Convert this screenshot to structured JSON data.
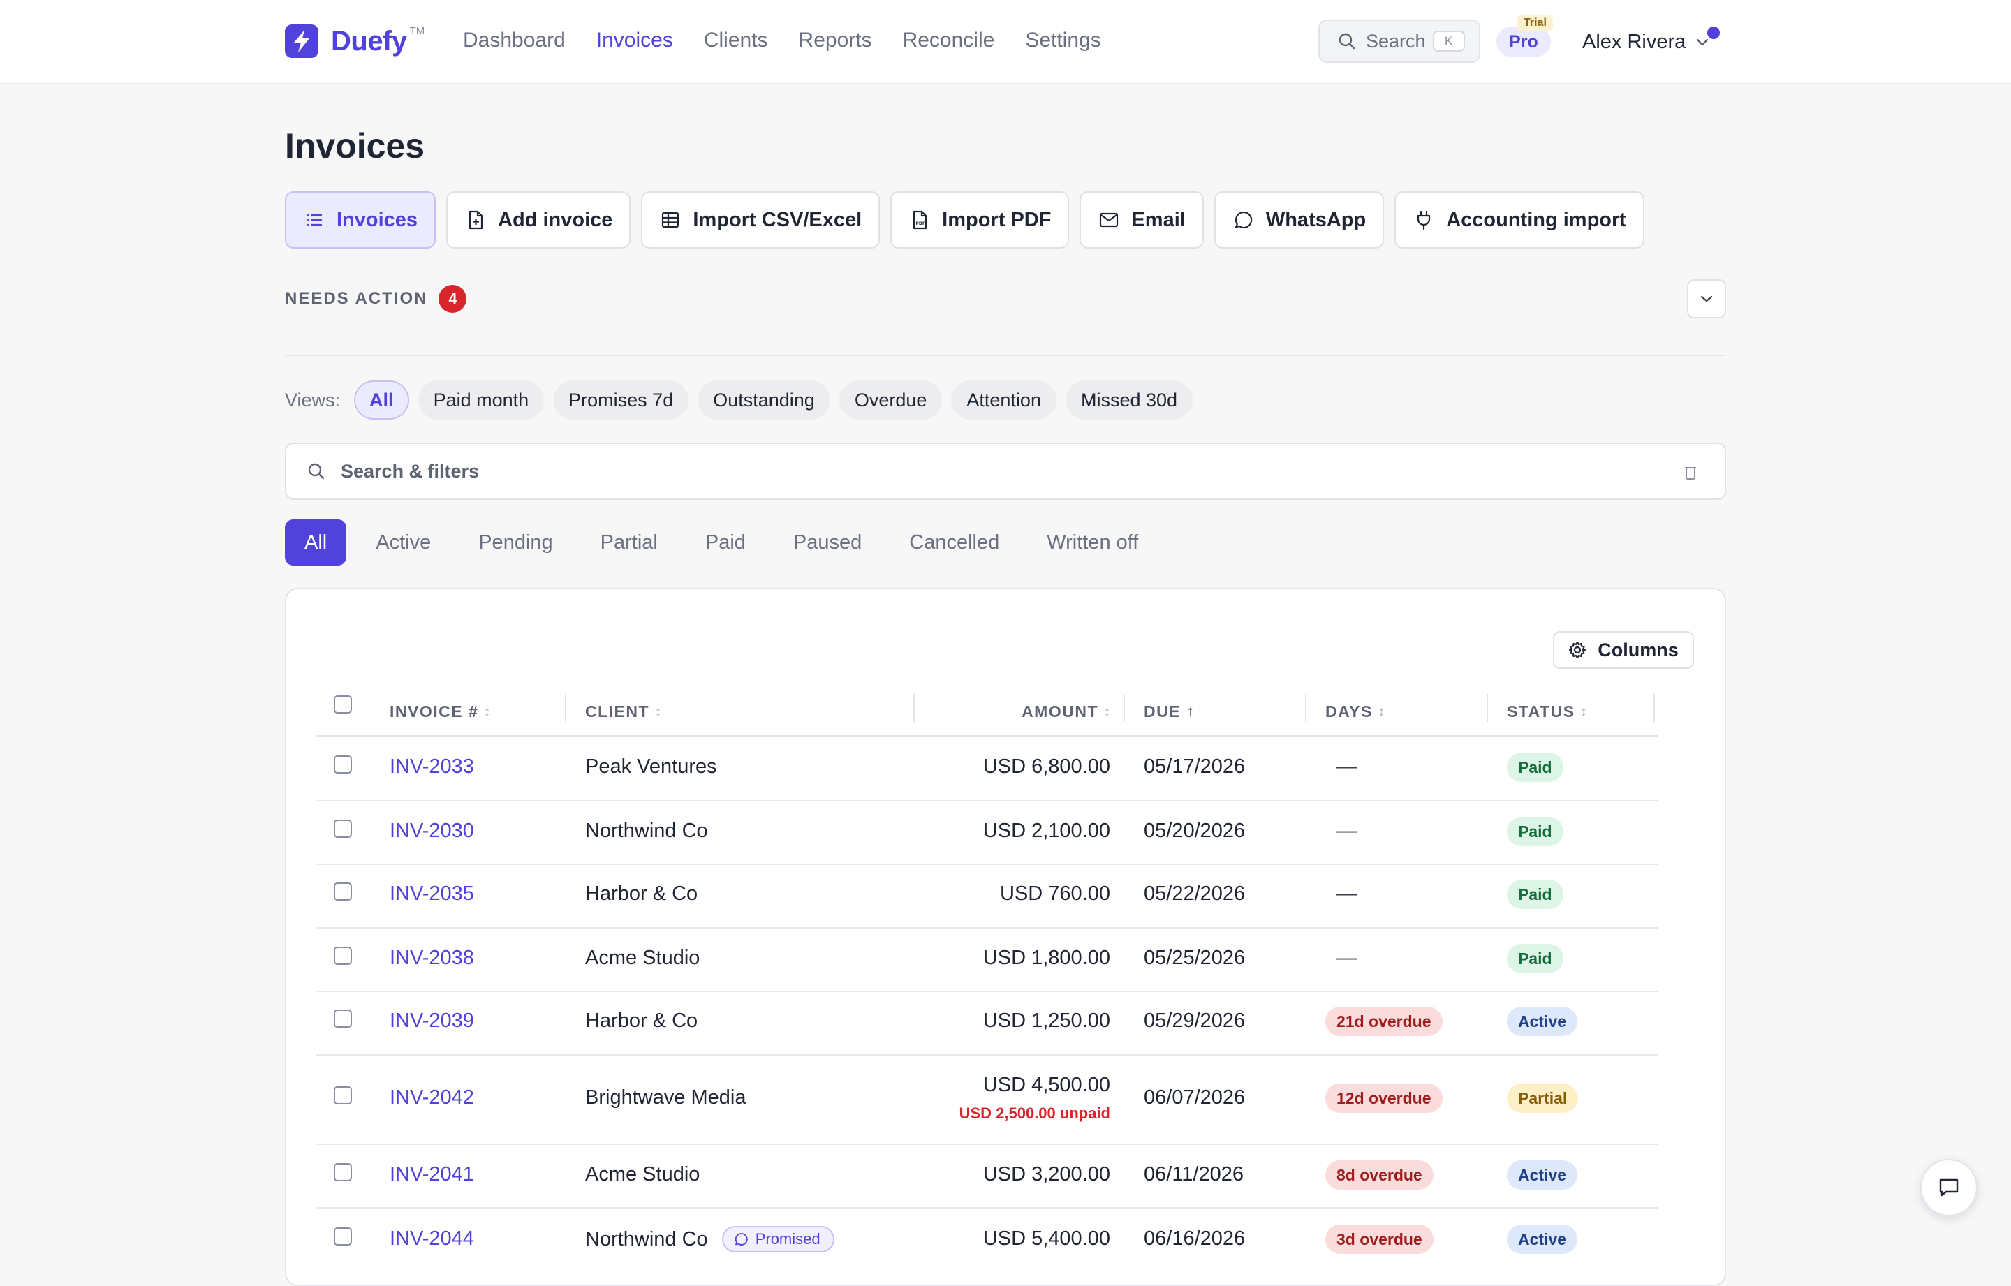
{
  "app": {
    "name": "Duefy",
    "trademark": "TM"
  },
  "nav": {
    "links": [
      "Dashboard",
      "Invoices",
      "Clients",
      "Reports",
      "Reconcile",
      "Settings"
    ],
    "active": "Invoices"
  },
  "search": {
    "label": "Search",
    "shortcut": "K"
  },
  "plan": {
    "label": "Pro",
    "tag": "Trial"
  },
  "user": {
    "name": "Alex Rivera"
  },
  "page": {
    "title": "Invoices"
  },
  "actions": [
    {
      "label": "Invoices",
      "icon": "list-icon"
    },
    {
      "label": "Add invoice",
      "icon": "file-plus-icon"
    },
    {
      "label": "Import CSV/Excel",
      "icon": "table-icon"
    },
    {
      "label": "Import PDF",
      "icon": "pdf-file-icon"
    },
    {
      "label": "Email",
      "icon": "mail-icon"
    },
    {
      "label": "WhatsApp",
      "icon": "whatsapp-icon"
    },
    {
      "label": "Accounting import",
      "icon": "plug-icon"
    }
  ],
  "needs_action": {
    "label": "NEEDS ACTION",
    "count": "4"
  },
  "views": {
    "label": "Views:",
    "items": [
      "All",
      "Paid month",
      "Promises 7d",
      "Outstanding",
      "Overdue",
      "Attention",
      "Missed 30d"
    ],
    "active": "All"
  },
  "filter": {
    "placeholder": "Search & filters"
  },
  "status_tabs": {
    "items": [
      "All",
      "Active",
      "Pending",
      "Partial",
      "Paid",
      "Paused",
      "Cancelled",
      "Written off"
    ],
    "active": "All"
  },
  "table": {
    "columns_button": "Columns",
    "headers": {
      "invoice": "INVOICE #",
      "client": "CLIENT",
      "amount": "AMOUNT",
      "due": "DUE",
      "days": "DAYS",
      "status": "STATUS"
    },
    "sort_glyph": "↕",
    "sorted_glyph": "↑",
    "rows": [
      {
        "invoice": "INV-2033",
        "client": "Peak Ventures",
        "amount": "USD 6,800.00",
        "due": "05/17/2026",
        "days": "—",
        "status": "Paid"
      },
      {
        "invoice": "INV-2030",
        "client": "Northwind Co",
        "amount": "USD 2,100.00",
        "due": "05/20/2026",
        "days": "—",
        "status": "Paid"
      },
      {
        "invoice": "INV-2035",
        "client": "Harbor & Co",
        "amount": "USD 760.00",
        "due": "05/22/2026",
        "days": "—",
        "status": "Paid"
      },
      {
        "invoice": "INV-2038",
        "client": "Acme Studio",
        "amount": "USD 1,800.00",
        "due": "05/25/2026",
        "days": "—",
        "status": "Paid"
      },
      {
        "invoice": "INV-2039",
        "client": "Harbor & Co",
        "amount": "USD 1,250.00",
        "due": "05/29/2026",
        "days": "21d overdue",
        "status": "Active"
      },
      {
        "invoice": "INV-2042",
        "client": "Brightwave Media",
        "amount": "USD 4,500.00",
        "unpaid": "USD 2,500.00 unpaid",
        "due": "06/07/2026",
        "days": "12d overdue",
        "status": "Partial"
      },
      {
        "invoice": "INV-2041",
        "client": "Acme Studio",
        "amount": "USD 3,200.00",
        "due": "06/11/2026",
        "days": "8d overdue",
        "status": "Active"
      },
      {
        "invoice": "INV-2044",
        "client": "Northwind Co",
        "tag": "Promised",
        "amount": "USD 5,400.00",
        "due": "06/16/2026",
        "days": "3d overdue",
        "status": "Active"
      }
    ]
  },
  "colors": {
    "brand": "#5142dc",
    "danger": "#d9262d",
    "paid_bg": "#dcf5e6",
    "active_bg": "#dde8fb",
    "partial_bg": "#fdf0c7",
    "overdue_bg": "#fbdcdc"
  }
}
